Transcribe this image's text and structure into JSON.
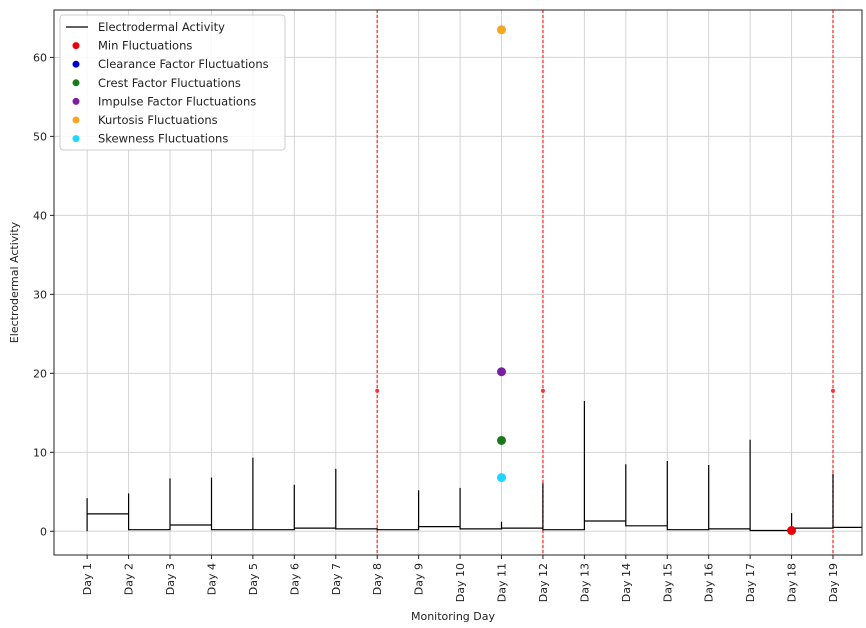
{
  "chart_data": {
    "type": "line",
    "title": "",
    "xlabel": "Monitoring Day",
    "ylabel": "Electrodermal Activity",
    "categories": [
      "Day 1",
      "Day 2",
      "Day 3",
      "Day 4",
      "Day 5",
      "Day 6",
      "Day 7",
      "Day 8",
      "Day 9",
      "Day 10",
      "Day 11",
      "Day 12",
      "Day 13",
      "Day 14",
      "Day 15",
      "Day 16",
      "Day 17",
      "Day 18",
      "Day 19"
    ],
    "xlim": [
      0.2,
      19.7
    ],
    "ylim": [
      -3,
      66
    ],
    "yticks": [
      0,
      10,
      20,
      30,
      40,
      50,
      60
    ],
    "grid": true,
    "legend_position": "top-left",
    "series": [
      {
        "name": "Electrodermal Activity",
        "kind": "line",
        "color": "#000000",
        "points": [
          [
            1,
            0
          ],
          [
            1,
            4.2
          ],
          [
            1,
            2.2
          ],
          [
            2,
            2.2
          ],
          [
            2,
            4.8
          ],
          [
            2,
            0.2
          ],
          [
            3,
            0.2
          ],
          [
            3,
            6.7
          ],
          [
            3,
            0.8
          ],
          [
            4,
            0.8
          ],
          [
            4,
            6.8
          ],
          [
            4,
            0.2
          ],
          [
            5,
            0.2
          ],
          [
            5,
            9.3
          ],
          [
            5,
            0.2
          ],
          [
            6,
            0.2
          ],
          [
            6,
            5.9
          ],
          [
            6,
            0.4
          ],
          [
            7,
            0.4
          ],
          [
            7,
            7.9
          ],
          [
            7,
            0.3
          ],
          [
            8,
            0.3
          ],
          [
            8,
            0.2
          ],
          [
            9,
            0.2
          ],
          [
            9,
            5.2
          ],
          [
            9,
            0.6
          ],
          [
            10,
            0.6
          ],
          [
            10,
            5.5
          ],
          [
            10,
            0.3
          ],
          [
            11,
            0.3
          ],
          [
            11,
            1.2
          ],
          [
            11,
            0.4
          ],
          [
            12,
            0.4
          ],
          [
            12,
            6.1
          ],
          [
            12,
            0.2
          ],
          [
            13,
            0.2
          ],
          [
            13,
            16.5
          ],
          [
            13,
            1.3
          ],
          [
            14,
            1.3
          ],
          [
            14,
            8.5
          ],
          [
            14,
            0.7
          ],
          [
            15,
            0.7
          ],
          [
            15,
            8.9
          ],
          [
            15,
            0.2
          ],
          [
            16,
            0.2
          ],
          [
            16,
            8.4
          ],
          [
            16,
            0.3
          ],
          [
            17,
            0.3
          ],
          [
            17,
            11.6
          ],
          [
            17,
            0.1
          ],
          [
            18,
            0.1
          ],
          [
            18,
            2.3
          ],
          [
            18,
            0.4
          ],
          [
            19,
            0.4
          ],
          [
            19,
            7.3
          ],
          [
            19,
            0.5
          ],
          [
            19.7,
            0.5
          ]
        ]
      },
      {
        "name": "Min Fluctuations",
        "kind": "scatter",
        "color": "#e8000b",
        "points": [
          [
            18,
            0.1
          ]
        ]
      },
      {
        "name": "Clearance Factor Fluctuations",
        "kind": "scatter",
        "color": "#0000cc",
        "points": []
      },
      {
        "name": "Crest Factor Fluctuations",
        "kind": "scatter",
        "color": "#1a7a1a",
        "points": [
          [
            11,
            11.5
          ]
        ]
      },
      {
        "name": "Impulse Factor Fluctuations",
        "kind": "scatter",
        "color": "#7a1fa2",
        "points": [
          [
            11,
            20.2
          ]
        ]
      },
      {
        "name": "Kurtosis Fluctuations",
        "kind": "scatter",
        "color": "#f5a623",
        "points": [
          [
            11,
            63.5
          ]
        ]
      },
      {
        "name": "Skewness Fluctuations",
        "kind": "scatter",
        "color": "#1fd6ff",
        "points": [
          [
            11,
            6.8
          ]
        ]
      }
    ],
    "vlines": [
      {
        "x": 8,
        "color": "#ff3333",
        "style": "dashed"
      },
      {
        "x": 12,
        "color": "#ff3333",
        "style": "dashed"
      },
      {
        "x": 19,
        "color": "#ff3333",
        "style": "dashed"
      }
    ],
    "vline_markers": [
      {
        "x": 8,
        "y": 17.8
      },
      {
        "x": 12,
        "y": 17.8
      },
      {
        "x": 19,
        "y": 17.8
      }
    ]
  }
}
